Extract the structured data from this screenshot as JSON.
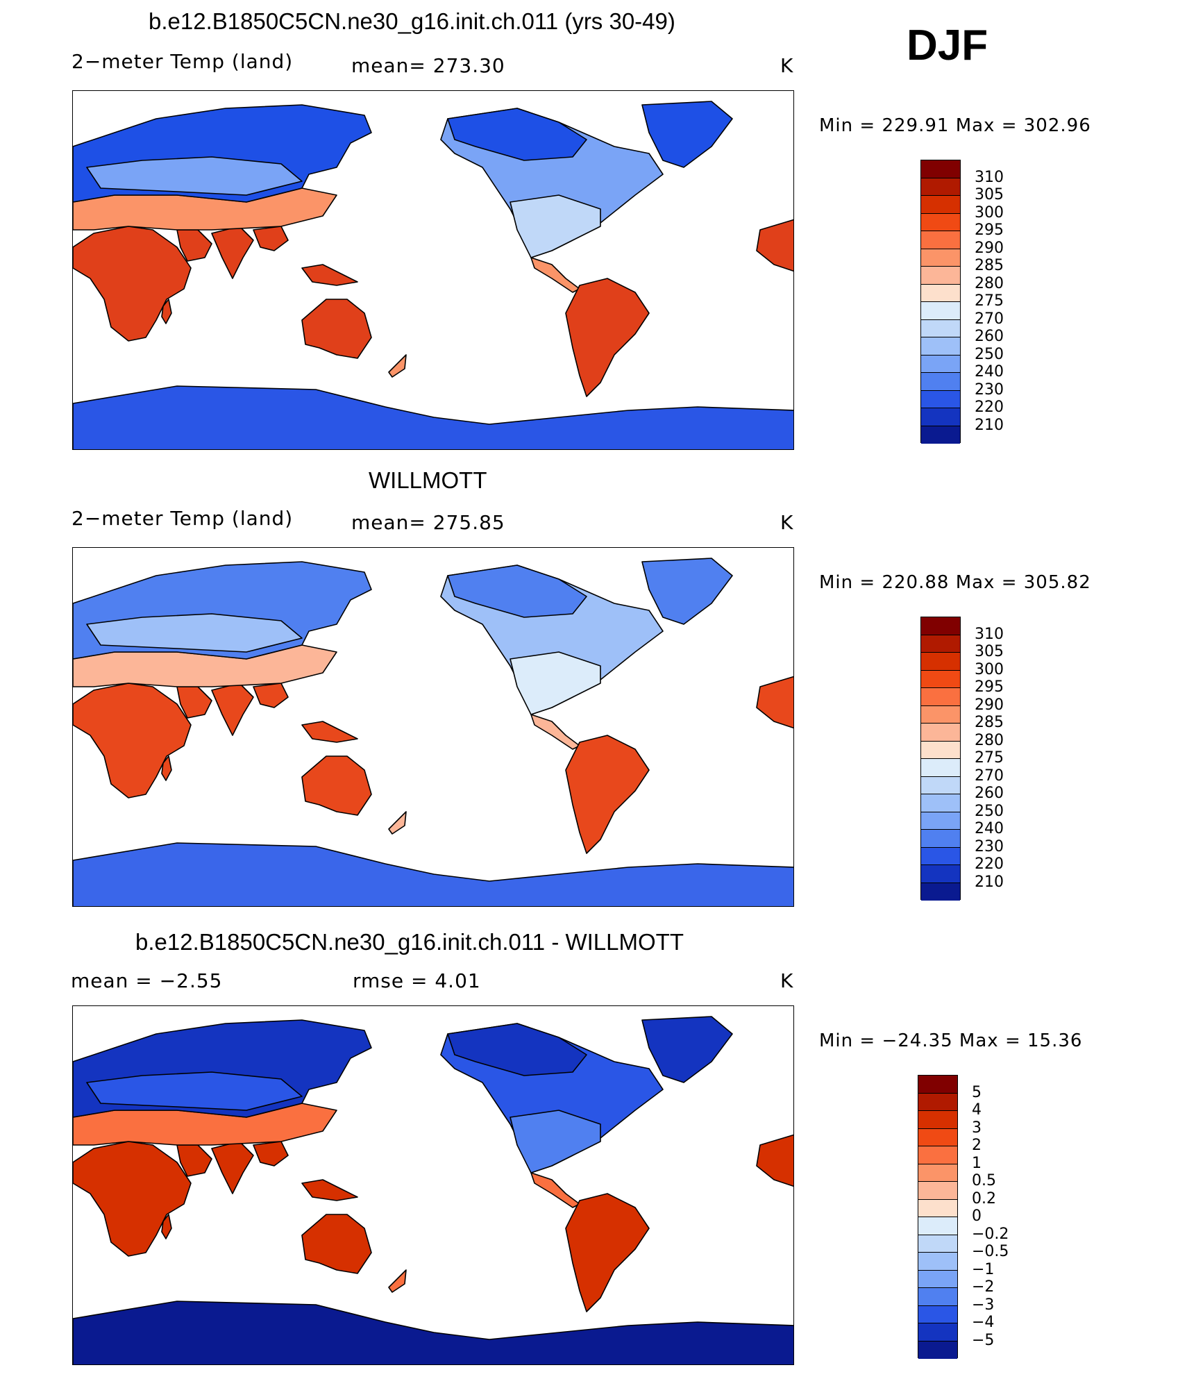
{
  "season": "DJF",
  "panels": [
    {
      "title": "b.e12.B1850C5CN.ne30_g16.init.ch.011 (yrs 30-49)",
      "variable": "2−meter Temp (land)",
      "stat1": "mean=  273.30",
      "stat2": "",
      "units": "K",
      "min_max": "Min  =  229.91  Max  =  302.96",
      "colorbar": {
        "labels": [
          "310",
          "305",
          "300",
          "295",
          "290",
          "285",
          "280",
          "275",
          "270",
          "260",
          "250",
          "240",
          "230",
          "220",
          "210"
        ],
        "colors": [
          "#800000",
          "#b01a00",
          "#d63000",
          "#f04a14",
          "#fa7040",
          "#fb9468",
          "#fcb698",
          "#fde0cc",
          "#dcecfa",
          "#c0d8f8",
          "#9ec0f8",
          "#7aa4f6",
          "#5080f0",
          "#2a56e6",
          "#1434c0",
          "#0a1a90"
        ]
      },
      "map_colors": {
        "cold": "#1e50e6",
        "cool": "#7aa4f6",
        "mild": "#c0d8f8",
        "warm": "#fb9468",
        "hot": "#e0401a",
        "polar": "#2a56e6"
      }
    },
    {
      "title": "WILLMOTT",
      "variable": "2−meter Temp (land)",
      "stat1": "mean=  275.85",
      "stat2": "",
      "units": "K",
      "min_max": "Min  =  220.88  Max  =  305.82",
      "colorbar": {
        "labels": [
          "310",
          "305",
          "300",
          "295",
          "290",
          "285",
          "280",
          "275",
          "270",
          "260",
          "250",
          "240",
          "230",
          "220",
          "210"
        ],
        "colors": [
          "#800000",
          "#b01a00",
          "#d63000",
          "#f04a14",
          "#fa7040",
          "#fb9468",
          "#fcb698",
          "#fde0cc",
          "#dcecfa",
          "#c0d8f8",
          "#9ec0f8",
          "#7aa4f6",
          "#5080f0",
          "#2a56e6",
          "#1434c0",
          "#0a1a90"
        ]
      },
      "map_colors": {
        "cold": "#5080f0",
        "cool": "#9ec0f8",
        "mild": "#dcecfa",
        "warm": "#fcb698",
        "hot": "#e8481c",
        "polar": "#3a66ea"
      }
    },
    {
      "title": "b.e12.B1850C5CN.ne30_g16.init.ch.011 - WILLMOTT",
      "variable": "mean =    −2.55",
      "stat1": "rmse =    4.01",
      "stat2": "",
      "units": "K",
      "min_max": "Min  =  −24.35  Max  =   15.36",
      "colorbar": {
        "labels": [
          "5",
          "4",
          "3",
          "2",
          "1",
          "0.5",
          "0.2",
          "0",
          "−0.2",
          "−0.5",
          "−1",
          "−2",
          "−3",
          "−4",
          "−5"
        ],
        "colors": [
          "#800000",
          "#b01a00",
          "#d63000",
          "#f04a14",
          "#fa7040",
          "#fb9468",
          "#fcb698",
          "#fde0cc",
          "#dcecfa",
          "#c0d8f8",
          "#9ec0f8",
          "#7aa4f6",
          "#5080f0",
          "#2a56e6",
          "#1434c0",
          "#0a1a90"
        ]
      },
      "map_colors": {
        "cold": "#1434c0",
        "cool": "#2a56e6",
        "mild": "#5080f0",
        "warm": "#fa7040",
        "hot": "#d63000",
        "polar": "#0a1a90"
      }
    }
  ]
}
